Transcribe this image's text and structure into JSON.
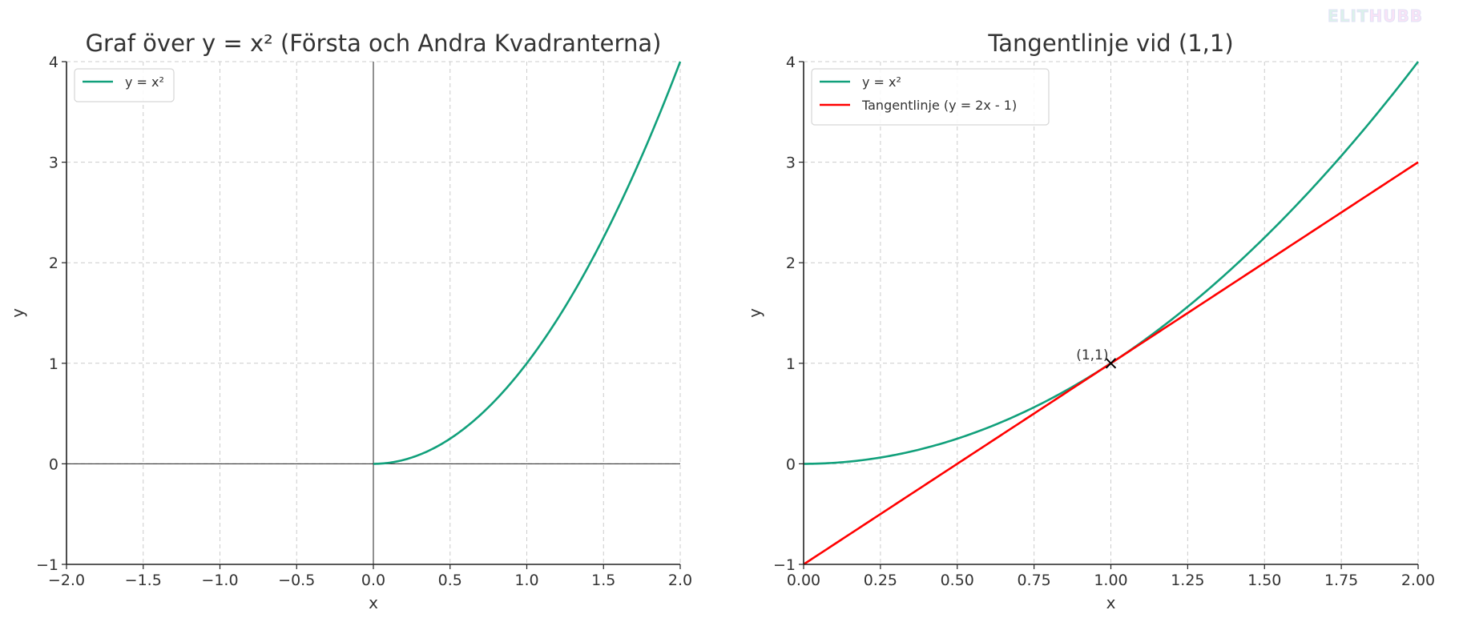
{
  "watermark": "ELITHUBB",
  "colors": {
    "curve": "#11a07b",
    "tangent": "#ff0000",
    "grid": "#cccccc",
    "text": "#333333"
  },
  "chart_data": [
    {
      "type": "line",
      "title": "Graf över y = x² (Första och Andra Kvadranterna)",
      "xlabel": "x",
      "ylabel": "y",
      "xlim": [
        -2.0,
        2.0
      ],
      "ylim": [
        -1,
        4
      ],
      "xticks": [
        -2.0,
        -1.5,
        -1.0,
        -0.5,
        0.0,
        0.5,
        1.0,
        1.5,
        2.0
      ],
      "xtick_labels": [
        "−2.0",
        "−1.5",
        "−1.0",
        "−0.5",
        "0.0",
        "0.5",
        "1.0",
        "1.5",
        "2.0"
      ],
      "yticks": [
        -1,
        0,
        1,
        2,
        3,
        4
      ],
      "ytick_labels": [
        "−1",
        "0",
        "1",
        "2",
        "3",
        "4"
      ],
      "grid": true,
      "axis_lines": true,
      "legend": "top-left",
      "series": [
        {
          "name": "y = x²",
          "function": "x^2",
          "x_range": [
            0,
            2
          ],
          "color": "#11a07b"
        }
      ]
    },
    {
      "type": "line",
      "title": "Tangentlinje vid (1,1)",
      "xlabel": "x",
      "ylabel": "y",
      "xlim": [
        0.0,
        2.0
      ],
      "ylim": [
        -1,
        4
      ],
      "xticks": [
        0,
        0.25,
        0.5,
        0.75,
        1.0,
        1.25,
        1.5,
        1.75,
        2.0
      ],
      "xtick_labels": [
        "0.00",
        "0.25",
        "0.50",
        "0.75",
        "1.00",
        "1.25",
        "1.50",
        "1.75",
        "2.00"
      ],
      "yticks": [
        -1,
        0,
        1,
        2,
        3,
        4
      ],
      "ytick_labels": [
        "−1",
        "0",
        "1",
        "2",
        "3",
        "4"
      ],
      "grid": true,
      "axis_lines": false,
      "legend": "top-left",
      "series": [
        {
          "name": "y = x²",
          "function": "x^2",
          "x_range": [
            0,
            2
          ],
          "color": "#11a07b"
        },
        {
          "name": "Tangentlinje (y = 2x - 1)",
          "function": "2x-1",
          "x_range": [
            0,
            2
          ],
          "color": "#ff0000"
        }
      ],
      "annotations": [
        {
          "text": "(1,1)",
          "x": 1,
          "y": 1,
          "marker": "x"
        }
      ]
    }
  ]
}
